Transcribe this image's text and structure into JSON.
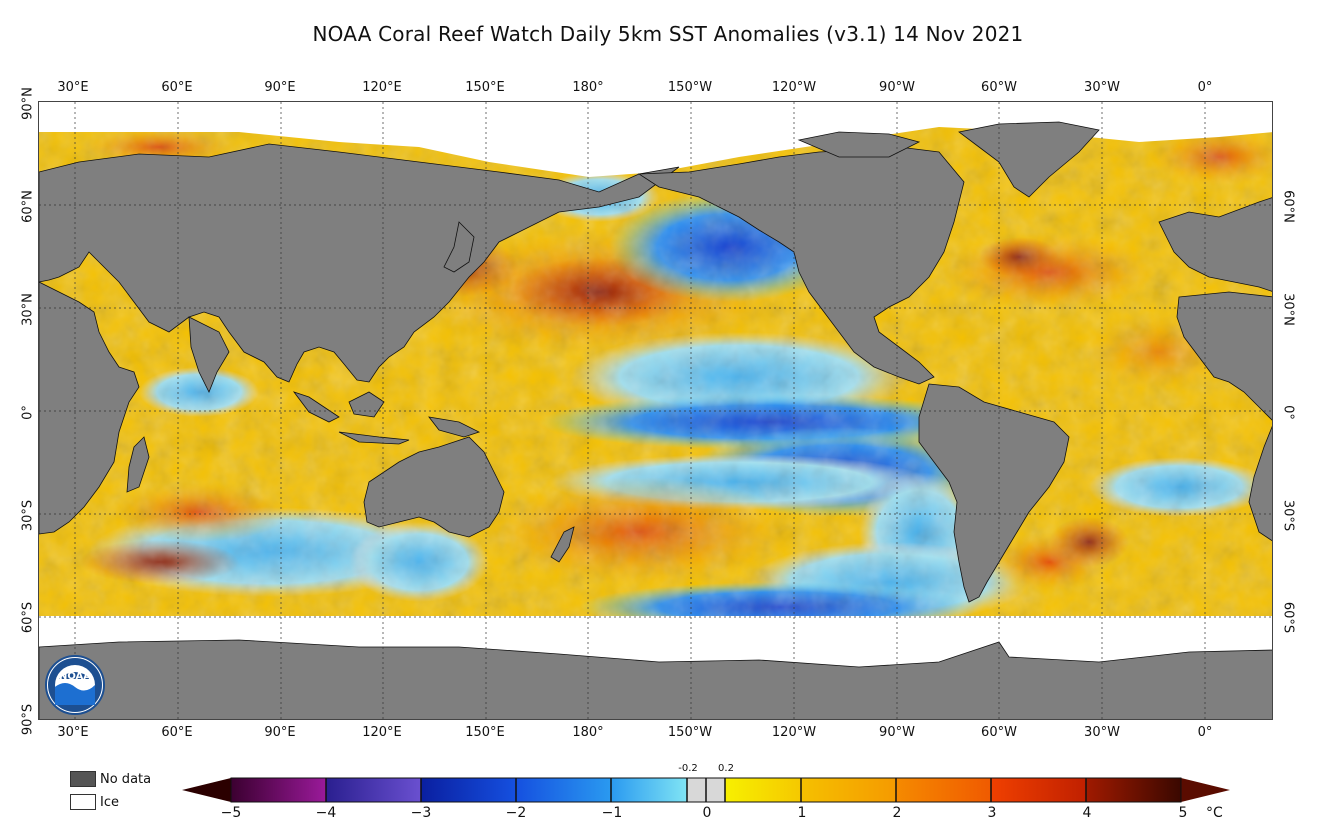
{
  "title": "NOAA Coral Reef Watch Daily 5km SST Anomalies  (v3.1)   14 Nov 2021",
  "lon_labels": [
    "30°E",
    "60°E",
    "90°E",
    "120°E",
    "150°E",
    "180°",
    "150°W",
    "120°W",
    "90°W",
    "60°W",
    "30°W",
    "0°"
  ],
  "lat_labels_left": [
    "90°N",
    "60°N",
    "30°N",
    "0°",
    "30°S",
    "60°S",
    "90°S"
  ],
  "lat_labels_right": [
    "60°N",
    "30°N",
    "0°",
    "30°S",
    "60°S"
  ],
  "legend": {
    "no_data": "No data",
    "ice": "Ice",
    "no_data_color": "#555555",
    "ice_color": "#ffffff"
  },
  "colorbar": {
    "ticks": [
      "−5",
      "−4",
      "−3",
      "−2",
      "−1",
      "0",
      "1",
      "2",
      "3",
      "4",
      "5"
    ],
    "small_ticks": [
      "-0.2",
      "0.2"
    ],
    "unit": "°C",
    "colors": [
      "#2b0000",
      "#4a0033",
      "#7a0a7a",
      "#3a1f8f",
      "#1530b0",
      "#1f5fe0",
      "#2a9af0",
      "#60d8f0",
      "#d8d8d8",
      "#f5e600",
      "#f6c000",
      "#f59a00",
      "#f06a00",
      "#e03000",
      "#a01a00",
      "#5a0c00"
    ]
  },
  "logo_text": "NOAA"
}
